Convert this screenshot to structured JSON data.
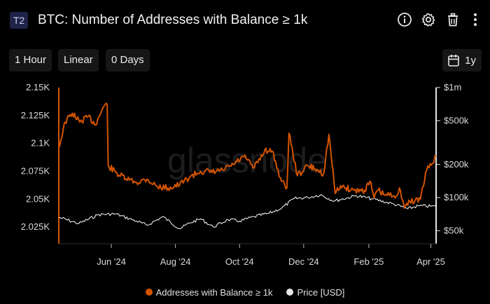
{
  "header": {
    "badge": "T2",
    "title": "BTC: Number of Addresses with Balance ≥ 1k",
    "icons": [
      "info-icon",
      "gear-icon",
      "trash-icon",
      "more-vertical-icon"
    ]
  },
  "controls": {
    "resolution": "1 Hour",
    "scale": "Linear",
    "offset": "0 Days",
    "period": "1y",
    "period_icon": "calendar-icon"
  },
  "watermark": "glassnode",
  "colors": {
    "addresses": "#d35400",
    "price": "#ffffff",
    "background": "#000000"
  },
  "chart_data": {
    "type": "line",
    "title": "BTC: Number of Addresses with Balance ≥ 1k",
    "x_tick_labels": [
      "Jun '24",
      "Aug '24",
      "Oct '24",
      "Dec '24",
      "Feb '25",
      "Apr '25"
    ],
    "x_range": [
      "2024-04-12",
      "2025-04-06"
    ],
    "y_left": {
      "tick_labels": [
        "2.15K",
        "2.125K",
        "2.1K",
        "2.075K",
        "2.05K",
        "2.025K"
      ],
      "ticks": [
        2150,
        2125,
        2100,
        2075,
        2050,
        2025
      ],
      "range": [
        2010,
        2150
      ]
    },
    "y_right": {
      "scale": "log",
      "tick_labels": [
        "$1m",
        "$500k",
        "$200k",
        "$100k",
        "$50k"
      ],
      "ticks": [
        1000000,
        500000,
        200000,
        100000,
        50000
      ],
      "range": [
        38000,
        1000000
      ]
    },
    "legend_position": "bottom-center",
    "series": [
      {
        "name": "Addresses with Balance ≥ 1k",
        "axis": "left",
        "x": [
          "2024-04-12",
          "2024-04-18",
          "2024-04-25",
          "2024-05-02",
          "2024-05-10",
          "2024-05-17",
          "2024-05-24",
          "2024-05-28",
          "2024-05-29",
          "2024-06-05",
          "2024-06-15",
          "2024-06-25",
          "2024-07-05",
          "2024-07-15",
          "2024-07-25",
          "2024-08-05",
          "2024-08-15",
          "2024-08-25",
          "2024-09-05",
          "2024-09-15",
          "2024-09-25",
          "2024-10-05",
          "2024-10-15",
          "2024-10-25",
          "2024-11-01",
          "2024-11-10",
          "2024-11-15",
          "2024-11-17",
          "2024-11-25",
          "2024-12-05",
          "2024-12-12",
          "2024-12-20",
          "2024-12-25",
          "2024-12-31",
          "2025-01-05",
          "2025-01-10",
          "2025-01-18",
          "2025-01-28",
          "2025-02-02",
          "2025-02-06",
          "2025-02-10",
          "2025-02-15",
          "2025-02-25",
          "2025-03-03",
          "2025-03-07",
          "2025-03-12",
          "2025-03-17",
          "2025-03-22",
          "2025-03-28",
          "2025-04-06"
        ],
        "y": [
          2096,
          2119,
          2127,
          2119,
          2124,
          2117,
          2132,
          2135,
          2080,
          2074,
          2068,
          2065,
          2068,
          2061,
          2060,
          2063,
          2070,
          2075,
          2074,
          2076,
          2081,
          2088,
          2078,
          2094,
          2093,
          2066,
          2060,
          2109,
          2071,
          2080,
          2077,
          2073,
          2108,
          2055,
          2062,
          2060,
          2058,
          2058,
          2066,
          2051,
          2058,
          2054,
          2053,
          2058,
          2042,
          2048,
          2049,
          2050,
          2076,
          2088
        ]
      },
      {
        "name": "Price [USD]",
        "axis": "right",
        "x": [
          "2024-04-12",
          "2024-05-01",
          "2024-05-20",
          "2024-06-05",
          "2024-06-25",
          "2024-07-05",
          "2024-07-20",
          "2024-08-05",
          "2024-08-15",
          "2024-08-25",
          "2024-09-06",
          "2024-09-20",
          "2024-10-01",
          "2024-10-15",
          "2024-10-29",
          "2024-11-10",
          "2024-11-22",
          "2024-12-05",
          "2024-12-17",
          "2024-12-30",
          "2025-01-20",
          "2025-02-05",
          "2025-02-25",
          "2025-03-10",
          "2025-03-20",
          "2025-04-06"
        ],
        "y": [
          66000,
          58000,
          70000,
          71000,
          61000,
          56000,
          67000,
          52000,
          59000,
          64000,
          54000,
          63000,
          61000,
          67000,
          72000,
          80000,
          98000,
          100000,
          106000,
          93000,
          104000,
          97000,
          87000,
          79000,
          84000,
          83000
        ]
      }
    ]
  },
  "legend": {
    "items": [
      {
        "label": "Addresses with Balance ≥ 1k",
        "color": "#d35400"
      },
      {
        "label": "Price [USD]",
        "color": "#e6e6e6"
      }
    ]
  }
}
